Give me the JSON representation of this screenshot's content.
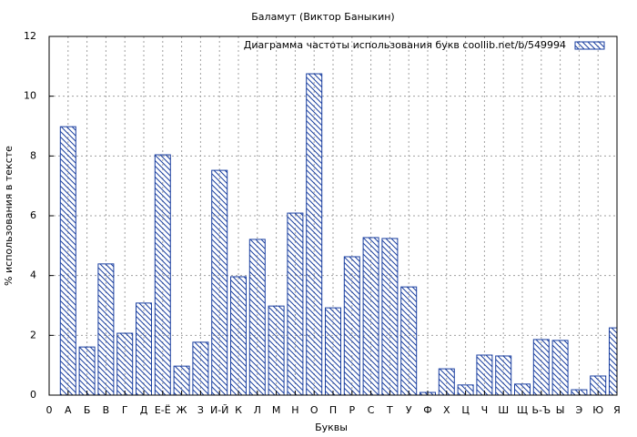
{
  "chart_data": {
    "type": "bar",
    "title": "Баламут (Виктор Баныкин)",
    "x_label": "Буквы",
    "y_label": "% использования в тексте",
    "categories": [
      "0",
      "А",
      "Б",
      "В",
      "Г",
      "Д",
      "Е-Ё",
      "Ж",
      "З",
      "И-Й",
      "К",
      "Л",
      "М",
      "Н",
      "О",
      "П",
      "Р",
      "С",
      "Т",
      "У",
      "Ф",
      "Х",
      "Ц",
      "Ч",
      "Ш",
      "Щ",
      "Ь-Ъ",
      "Ы",
      "Э",
      "Ю",
      "Я"
    ],
    "series": [
      {
        "name": "Диаграмма частоты использования букв  coollib.net/b/549994",
        "color": "#1a3fa0",
        "values": [
          null,
          8.98,
          1.61,
          4.39,
          2.07,
          3.08,
          8.04,
          0.97,
          1.77,
          7.52,
          3.96,
          5.21,
          2.98,
          6.09,
          10.75,
          2.92,
          4.63,
          5.27,
          5.24,
          3.62,
          0.09,
          0.88,
          0.34,
          1.34,
          1.31,
          0.37,
          1.86,
          1.83,
          0.18,
          0.64,
          2.25
        ]
      }
    ],
    "ylim": [
      0,
      12
    ],
    "yticks": [
      0,
      2,
      4,
      6,
      8,
      10,
      12
    ],
    "grid": true,
    "legend": "top-right"
  }
}
